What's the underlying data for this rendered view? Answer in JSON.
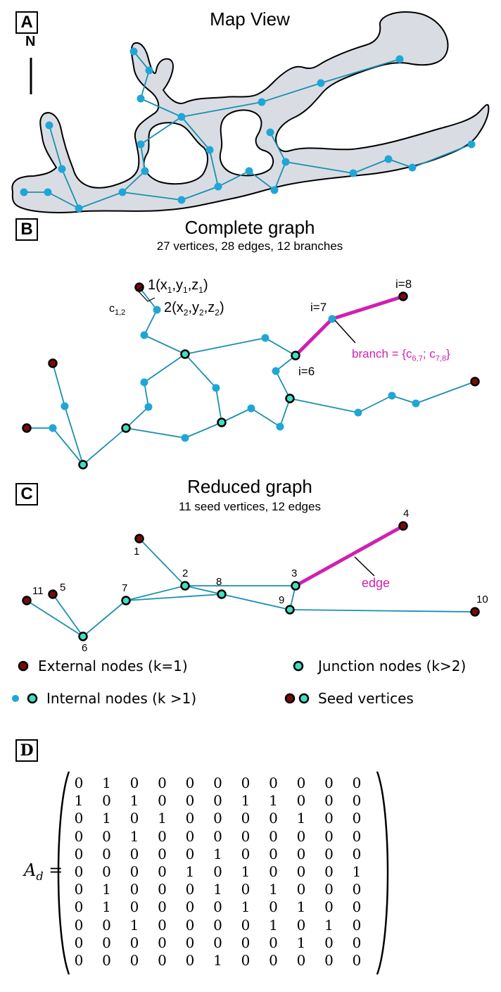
{
  "panels": {
    "a": {
      "label": "A",
      "title": "Map View",
      "north": "N"
    },
    "b": {
      "label": "B",
      "title": "Complete graph",
      "subtitle": "27 vertices, 28 edges, 12 branches",
      "node1_label": "1(x",
      "node2_label": "2(x",
      "cost_label": "c",
      "cost_sub": "1,2",
      "i6": "i=6",
      "i7": "i=7",
      "i8": "i=8",
      "branch_text": "branch = {c",
      "branch_sub1": "6,7",
      "branch_mid": "; c",
      "branch_sub2": "7,8",
      "branch_end": "}"
    },
    "c": {
      "label": "C",
      "title": "Reduced graph",
      "subtitle": "11 seed vertices, 12 edges",
      "edge_label": "edge",
      "seed_labels": [
        "1",
        "2",
        "3",
        "4",
        "5",
        "6",
        "7",
        "8",
        "9",
        "10",
        "11"
      ]
    },
    "d": {
      "label": "D",
      "matrix_label": "A",
      "matrix_sub": "d",
      "equals": "="
    }
  },
  "legend": {
    "external": "External nodes (k=1)",
    "junction": "Junction nodes (k>2)",
    "internal": "Internal nodes (k >1)",
    "seed": "Seed vertices"
  },
  "colors": {
    "edge": "#1a8fb0",
    "internal": "#1fa6d6",
    "external": "#7a0a0a",
    "junction": "#3fe0c0",
    "highlight": "#d020b0",
    "cave_fill": "#d9dde3"
  },
  "matrix": [
    [
      0,
      1,
      0,
      0,
      0,
      0,
      0,
      0,
      0,
      0,
      0
    ],
    [
      1,
      0,
      1,
      0,
      0,
      0,
      1,
      1,
      0,
      0,
      0
    ],
    [
      0,
      1,
      0,
      1,
      0,
      0,
      0,
      0,
      1,
      0,
      0
    ],
    [
      0,
      0,
      1,
      0,
      0,
      0,
      0,
      0,
      0,
      0,
      0
    ],
    [
      0,
      0,
      0,
      0,
      0,
      1,
      0,
      0,
      0,
      0,
      0
    ],
    [
      0,
      0,
      0,
      0,
      1,
      0,
      1,
      0,
      0,
      0,
      1
    ],
    [
      0,
      1,
      0,
      0,
      0,
      1,
      0,
      1,
      0,
      0,
      0
    ],
    [
      0,
      1,
      0,
      0,
      0,
      0,
      1,
      0,
      1,
      0,
      0
    ],
    [
      0,
      0,
      1,
      0,
      0,
      0,
      0,
      1,
      0,
      1,
      0
    ],
    [
      0,
      0,
      0,
      0,
      0,
      0,
      0,
      0,
      1,
      0,
      0
    ],
    [
      0,
      0,
      0,
      0,
      0,
      1,
      0,
      0,
      0,
      0,
      0
    ]
  ]
}
